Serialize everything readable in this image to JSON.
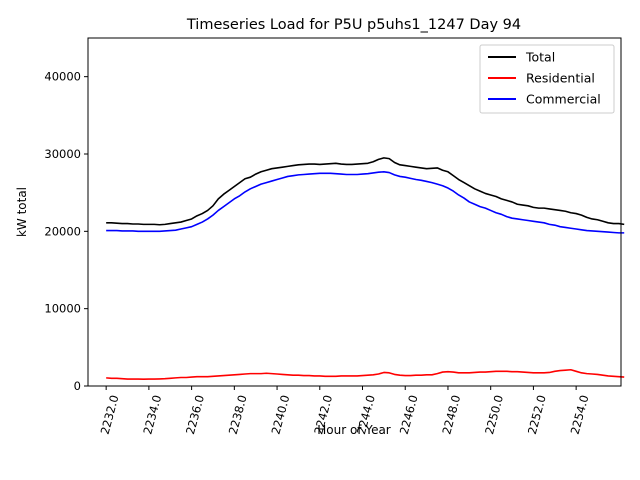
{
  "chart_data": {
    "type": "line",
    "title": "Timeseries Load for P5U p5uhs1_1247  Day 94",
    "xlabel": "Hour of Year",
    "ylabel": "kW total",
    "xlim": [
      2231.15,
      2256.1
    ],
    "ylim": [
      0,
      45000
    ],
    "x_ticks": [
      2232,
      2234,
      2236,
      2238,
      2240,
      2242,
      2244,
      2246,
      2248,
      2250,
      2252,
      2254
    ],
    "x_tick_labels": [
      "2232.0",
      "2234.0",
      "2236.0",
      "2238.0",
      "2240.0",
      "2242.0",
      "2244.0",
      "2246.0",
      "2248.0",
      "2250.0",
      "2252.0",
      "2254.0"
    ],
    "y_ticks": [
      0,
      10000,
      20000,
      30000,
      40000
    ],
    "y_tick_labels": [
      "0",
      "10000",
      "20000",
      "30000",
      "40000"
    ],
    "grid": false,
    "legend_position": "upper-right",
    "x_start": 2232.0,
    "x_step": 0.25,
    "series": [
      {
        "name": "Total",
        "color": "#000000",
        "values": [
          21100,
          21100,
          21050,
          21000,
          21000,
          20950,
          20950,
          20900,
          20900,
          20900,
          20850,
          20900,
          21000,
          21100,
          21200,
          21400,
          21600,
          22000,
          22300,
          22700,
          23300,
          24200,
          24800,
          25300,
          25800,
          26300,
          26800,
          27000,
          27400,
          27700,
          27900,
          28100,
          28200,
          28300,
          28400,
          28500,
          28600,
          28650,
          28700,
          28700,
          28650,
          28700,
          28750,
          28800,
          28700,
          28650,
          28650,
          28700,
          28750,
          28800,
          29000,
          29300,
          29500,
          29400,
          28900,
          28600,
          28500,
          28400,
          28300,
          28200,
          28100,
          28150,
          28200,
          27900,
          27700,
          27200,
          26700,
          26300,
          25900,
          25500,
          25200,
          24900,
          24700,
          24500,
          24200,
          24000,
          23800,
          23500,
          23400,
          23300,
          23100,
          23000,
          23000,
          22900,
          22800,
          22700,
          22600,
          22400,
          22300,
          22100,
          21800,
          21600,
          21500,
          21300,
          21100,
          21000,
          21000,
          20900
        ]
      },
      {
        "name": "Residential",
        "color": "#ff0000",
        "values": [
          1050,
          1000,
          1000,
          950,
          900,
          900,
          900,
          880,
          900,
          900,
          920,
          950,
          1000,
          1050,
          1100,
          1100,
          1150,
          1200,
          1200,
          1200,
          1250,
          1300,
          1350,
          1400,
          1450,
          1500,
          1550,
          1600,
          1600,
          1600,
          1650,
          1600,
          1550,
          1500,
          1450,
          1400,
          1400,
          1350,
          1350,
          1300,
          1300,
          1250,
          1250,
          1250,
          1300,
          1300,
          1300,
          1300,
          1350,
          1400,
          1450,
          1550,
          1750,
          1700,
          1500,
          1400,
          1350,
          1350,
          1400,
          1400,
          1450,
          1450,
          1600,
          1800,
          1850,
          1800,
          1700,
          1700,
          1700,
          1750,
          1800,
          1800,
          1850,
          1900,
          1900,
          1900,
          1850,
          1850,
          1800,
          1750,
          1700,
          1700,
          1700,
          1750,
          1900,
          2000,
          2050,
          2100,
          1900,
          1700,
          1600,
          1550,
          1500,
          1400,
          1300,
          1250,
          1200,
          1150
        ]
      },
      {
        "name": "Commercial",
        "color": "#0000ff",
        "values": [
          20100,
          20100,
          20100,
          20050,
          20050,
          20050,
          20000,
          20000,
          20000,
          20000,
          20000,
          20050,
          20100,
          20150,
          20300,
          20450,
          20600,
          20900,
          21200,
          21600,
          22100,
          22700,
          23200,
          23700,
          24200,
          24600,
          25100,
          25500,
          25800,
          26100,
          26300,
          26500,
          26700,
          26900,
          27100,
          27200,
          27300,
          27350,
          27400,
          27450,
          27500,
          27500,
          27500,
          27450,
          27400,
          27350,
          27350,
          27350,
          27400,
          27450,
          27550,
          27650,
          27700,
          27600,
          27300,
          27100,
          27000,
          26850,
          26700,
          26600,
          26450,
          26300,
          26100,
          25900,
          25600,
          25200,
          24700,
          24300,
          23800,
          23500,
          23200,
          23000,
          22700,
          22400,
          22200,
          21900,
          21700,
          21600,
          21500,
          21400,
          21300,
          21200,
          21100,
          20900,
          20800,
          20600,
          20500,
          20400,
          20300,
          20200,
          20100,
          20050,
          20000,
          19950,
          19900,
          19850,
          19800,
          19800
        ]
      }
    ]
  }
}
